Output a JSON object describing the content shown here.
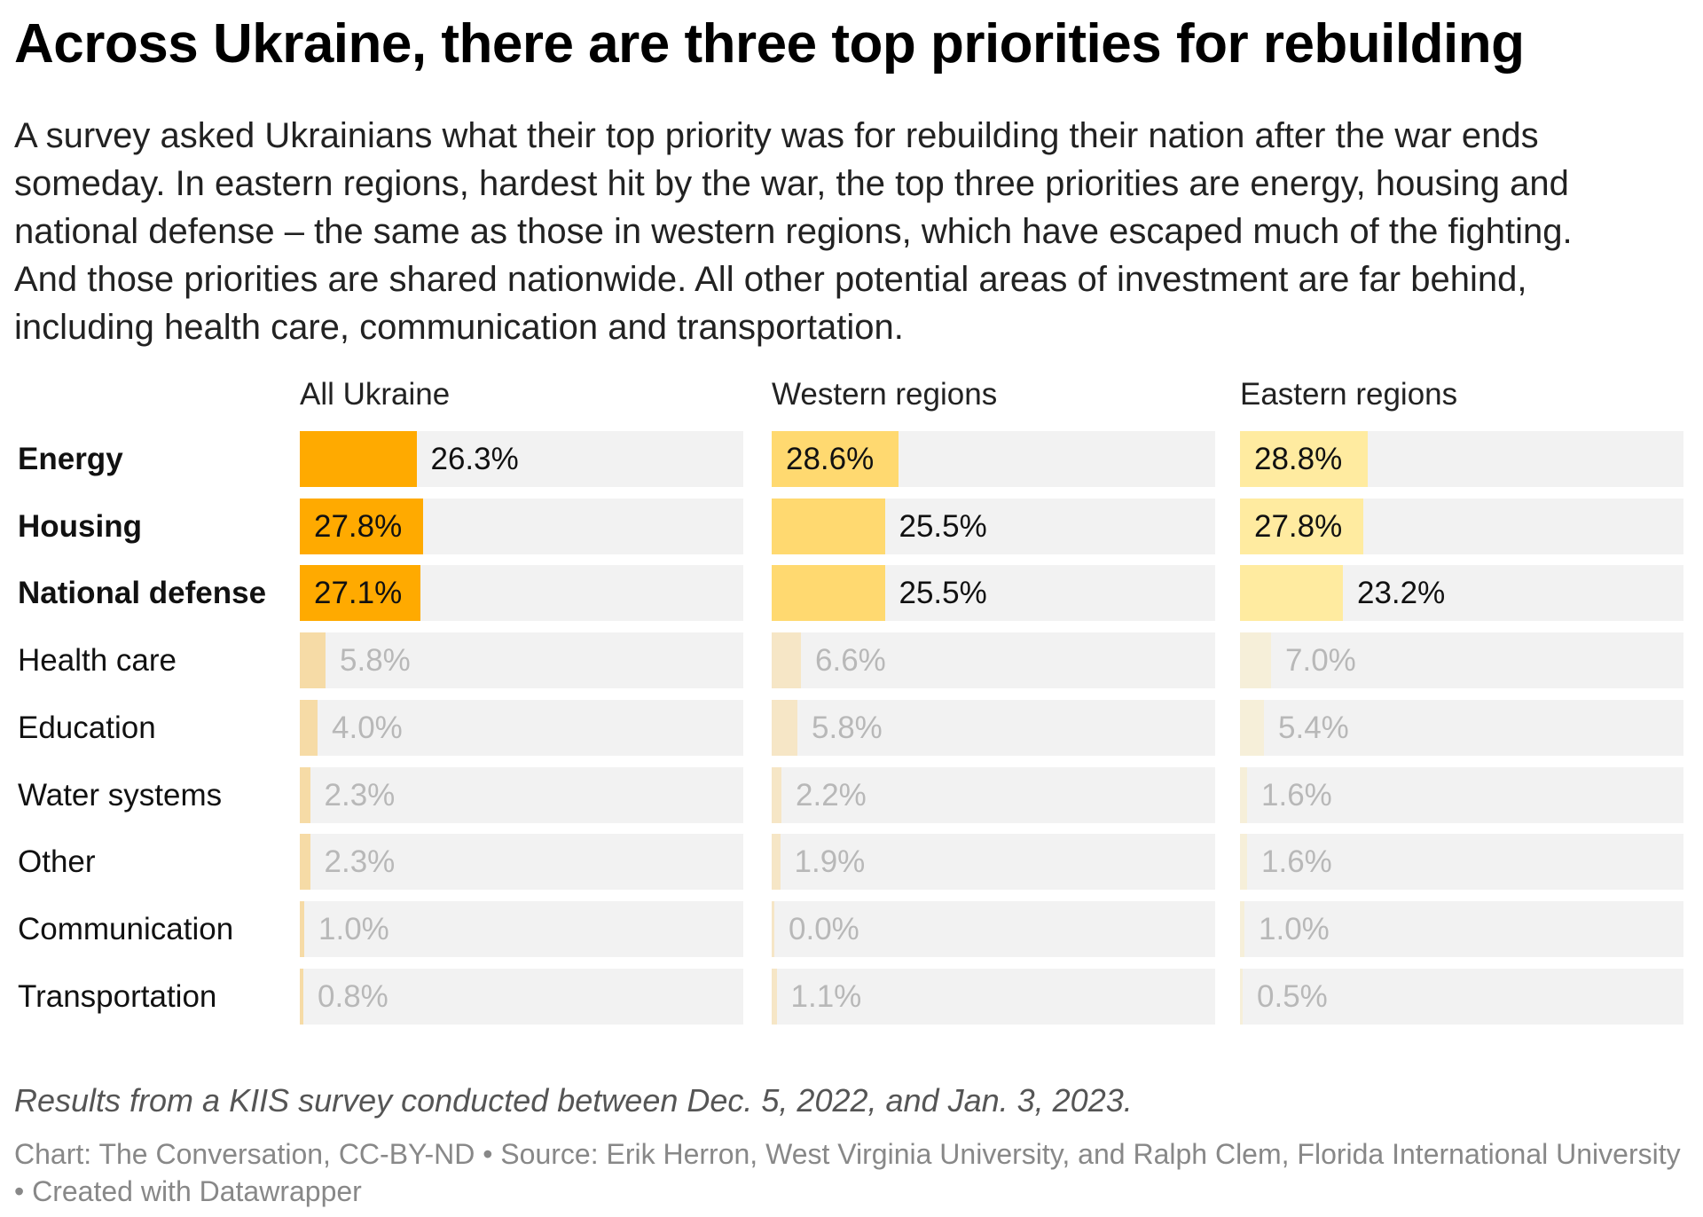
{
  "title": "Across Ukraine, there are three top priorities for rebuilding",
  "subtitle": "A survey asked Ukrainians what their top priority was for rebuilding their nation after the war ends someday. In eastern regions, hardest hit by the war, the top three priorities are energy, housing and national defense – the same as those in western regions, which have escaped much of the fighting. And those priorities are shared nationwide. All other potential areas of investment are far behind, including health care, communication and transportation.",
  "chart_data": {
    "type": "bar",
    "orientation": "horizontal",
    "xlim": [
      0,
      100
    ],
    "categories": [
      "Energy",
      "Housing",
      "National defense",
      "Health care",
      "Education",
      "Water systems",
      "Other",
      "Communication",
      "Transportation"
    ],
    "highlighted_categories": [
      "Energy",
      "Housing",
      "National defense"
    ],
    "series": [
      {
        "name": "All Ukraine",
        "values": [
          26.3,
          27.8,
          27.1,
          5.8,
          4.0,
          2.3,
          2.3,
          1.0,
          0.8
        ],
        "labels": [
          "26.3%",
          "27.8%",
          "27.1%",
          "5.8%",
          "4.0%",
          "2.3%",
          "2.3%",
          "1.0%",
          "0.8%"
        ],
        "color": "#ffaa00",
        "faded_color": "#f6dba6"
      },
      {
        "name": "Western regions",
        "values": [
          28.6,
          25.5,
          25.5,
          6.6,
          5.8,
          2.2,
          1.9,
          0.0,
          1.1
        ],
        "labels": [
          "28.6%",
          "25.5%",
          "25.5%",
          "6.6%",
          "5.8%",
          "2.2%",
          "1.9%",
          "0.0%",
          "1.1%"
        ],
        "color": "#ffd970",
        "faded_color": "#f6e6c6"
      },
      {
        "name": "Eastern regions",
        "values": [
          28.8,
          27.8,
          23.2,
          7.0,
          5.4,
          1.6,
          1.6,
          1.0,
          0.5
        ],
        "labels": [
          "28.8%",
          "27.8%",
          "23.2%",
          "7.0%",
          "5.4%",
          "1.6%",
          "1.6%",
          "1.0%",
          "0.5%"
        ],
        "color": "#ffeba0",
        "faded_color": "#f6efd9"
      }
    ],
    "track_color": "#f2f2f2",
    "grid": false,
    "legend": "none"
  },
  "note": "Results from a KIIS survey conducted between Dec. 5, 2022, and Jan. 3, 2023.",
  "credits": "Chart: The Conversation, CC-BY-ND • Source: Erik Herron, West Virginia University, and Ralph Clem, Florida International University • Created with Datawrapper"
}
